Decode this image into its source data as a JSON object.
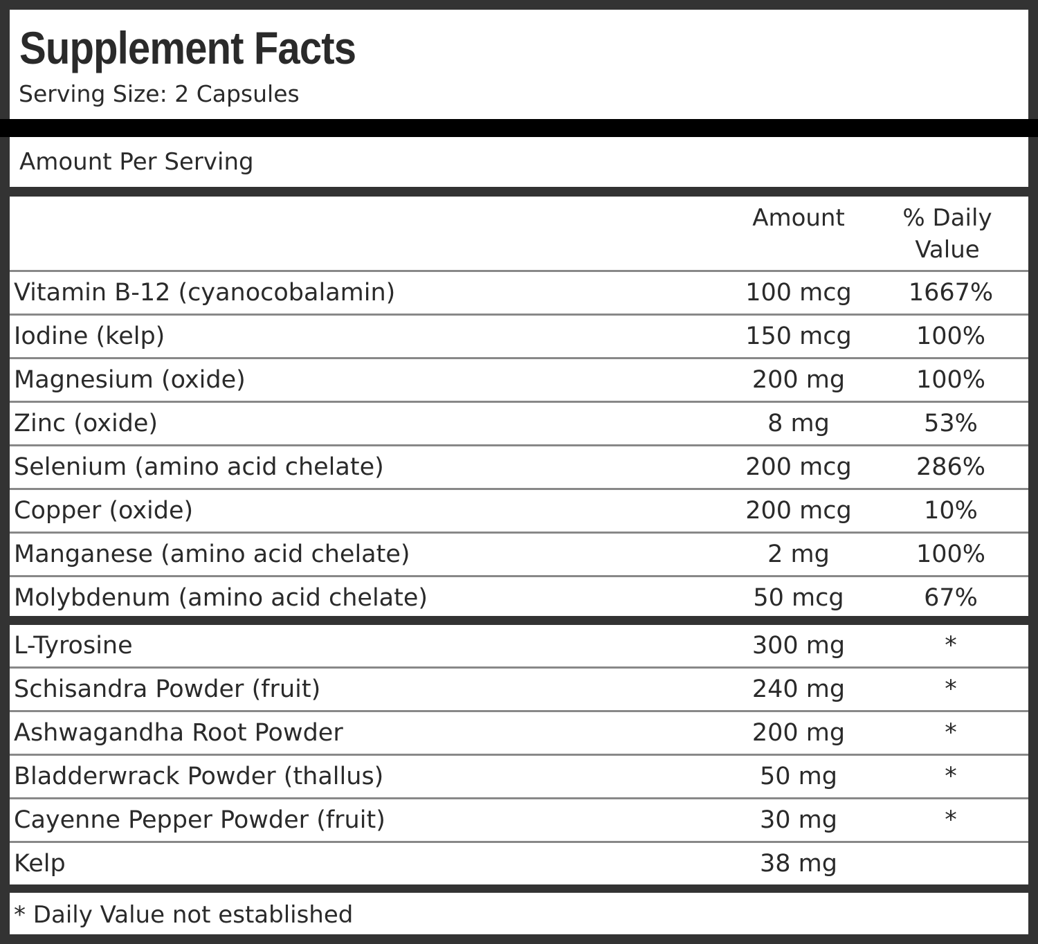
{
  "title": "Supplement Facts",
  "serving_size": "Serving Size: 2 Capsules",
  "amount_per_serving": "Amount Per Serving",
  "columns": {
    "amount": "Amount",
    "daily_value": "% Daily Value"
  },
  "vitamins": [
    {
      "name": "Vitamin B-12 (cyanocobalamin)",
      "amount": "100 mcg",
      "dv": "1667%"
    },
    {
      "name": "Iodine (kelp)",
      "amount": "150 mcg",
      "dv": "100%"
    },
    {
      "name": "Magnesium (oxide)",
      "amount": "200 mg",
      "dv": "100%"
    },
    {
      "name": "Zinc (oxide)",
      "amount": "8 mg",
      "dv": "53%"
    },
    {
      "name": "Selenium (amino acid chelate)",
      "amount": "200 mcg",
      "dv": "286%"
    },
    {
      "name": "Copper (oxide)",
      "amount": "200 mcg",
      "dv": "10%"
    },
    {
      "name": "Manganese (amino acid chelate)",
      "amount": "2 mg",
      "dv": "100%"
    },
    {
      "name": "Molybdenum (amino acid chelate)",
      "amount": "50 mcg",
      "dv": "67%"
    }
  ],
  "others": [
    {
      "name": "L-Tyrosine",
      "amount": "300 mg",
      "dv": "*"
    },
    {
      "name": "Schisandra Powder (fruit)",
      "amount": "240 mg",
      "dv": "*"
    },
    {
      "name": "Ashwagandha Root Powder",
      "amount": "200 mg",
      "dv": "*"
    },
    {
      "name": "Bladderwrack Powder (thallus)",
      "amount": "50 mg",
      "dv": "*"
    },
    {
      "name": "Cayenne Pepper Powder (fruit)",
      "amount": "30 mg",
      "dv": "*"
    },
    {
      "name": "Kelp",
      "amount": "38 mg",
      "dv": ""
    }
  ],
  "footnote": "* Daily Value not established"
}
